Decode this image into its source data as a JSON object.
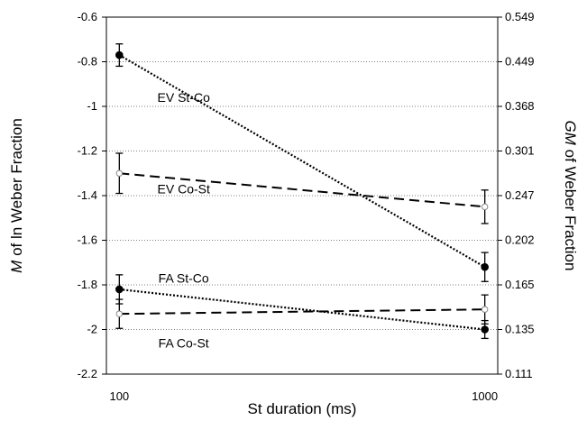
{
  "chart_data": {
    "type": "line",
    "x_scale": "log",
    "x_ticks": [
      100,
      1000
    ],
    "x_tick_labels": [
      "100",
      "1000"
    ],
    "xlabel": "St duration (ms)",
    "ylabel_left_italic": "M",
    "ylabel_left_rest": " of ln Weber Fraction",
    "ylabel_right_italic": "GM",
    "ylabel_right_rest": " of Weber Fraction",
    "ylim": [
      -2.2,
      -0.6
    ],
    "y_ticks": [
      -0.6,
      -0.8,
      -1,
      -1.2,
      -1.4,
      -1.6,
      -1.8,
      -2,
      -2.2
    ],
    "y_tick_labels": [
      "-0.6",
      "-0.8",
      "-1",
      "-1.2",
      "-1.4",
      "-1.6",
      "-1.8",
      "-2",
      "-2.2"
    ],
    "y2_tick_labels": [
      "0.549",
      "0.449",
      "0.368",
      "0.301",
      "0.247",
      "0.202",
      "0.165",
      "0.135",
      "0.111"
    ],
    "grid": "horizontal dotted",
    "series": [
      {
        "name": "EV St-Co",
        "x": [
          100,
          1000
        ],
        "values": [
          -0.77,
          -1.72
        ],
        "err": [
          0.05,
          0.065
        ],
        "line": "dotted",
        "marker": "filled",
        "label_pos": [
          150,
          -0.96
        ]
      },
      {
        "name": "EV Co-St",
        "x": [
          100,
          1000
        ],
        "values": [
          -1.3,
          -1.45
        ],
        "err": [
          0.09,
          0.075
        ],
        "line": "dashed",
        "marker": "open",
        "label_pos": [
          150,
          -1.37
        ]
      },
      {
        "name": "FA St-Co",
        "x": [
          100,
          1000
        ],
        "values": [
          -1.82,
          -2.0
        ],
        "err": [
          0.065,
          0.04
        ],
        "line": "dotted",
        "marker": "filled",
        "label_pos": [
          150,
          -1.77
        ]
      },
      {
        "name": "FA Co-St",
        "x": [
          100,
          1000
        ],
        "values": [
          -1.93,
          -1.91
        ],
        "err": [
          0.065,
          0.065
        ],
        "line": "dashed",
        "marker": "open",
        "label_pos": [
          150,
          -2.06
        ]
      }
    ]
  }
}
